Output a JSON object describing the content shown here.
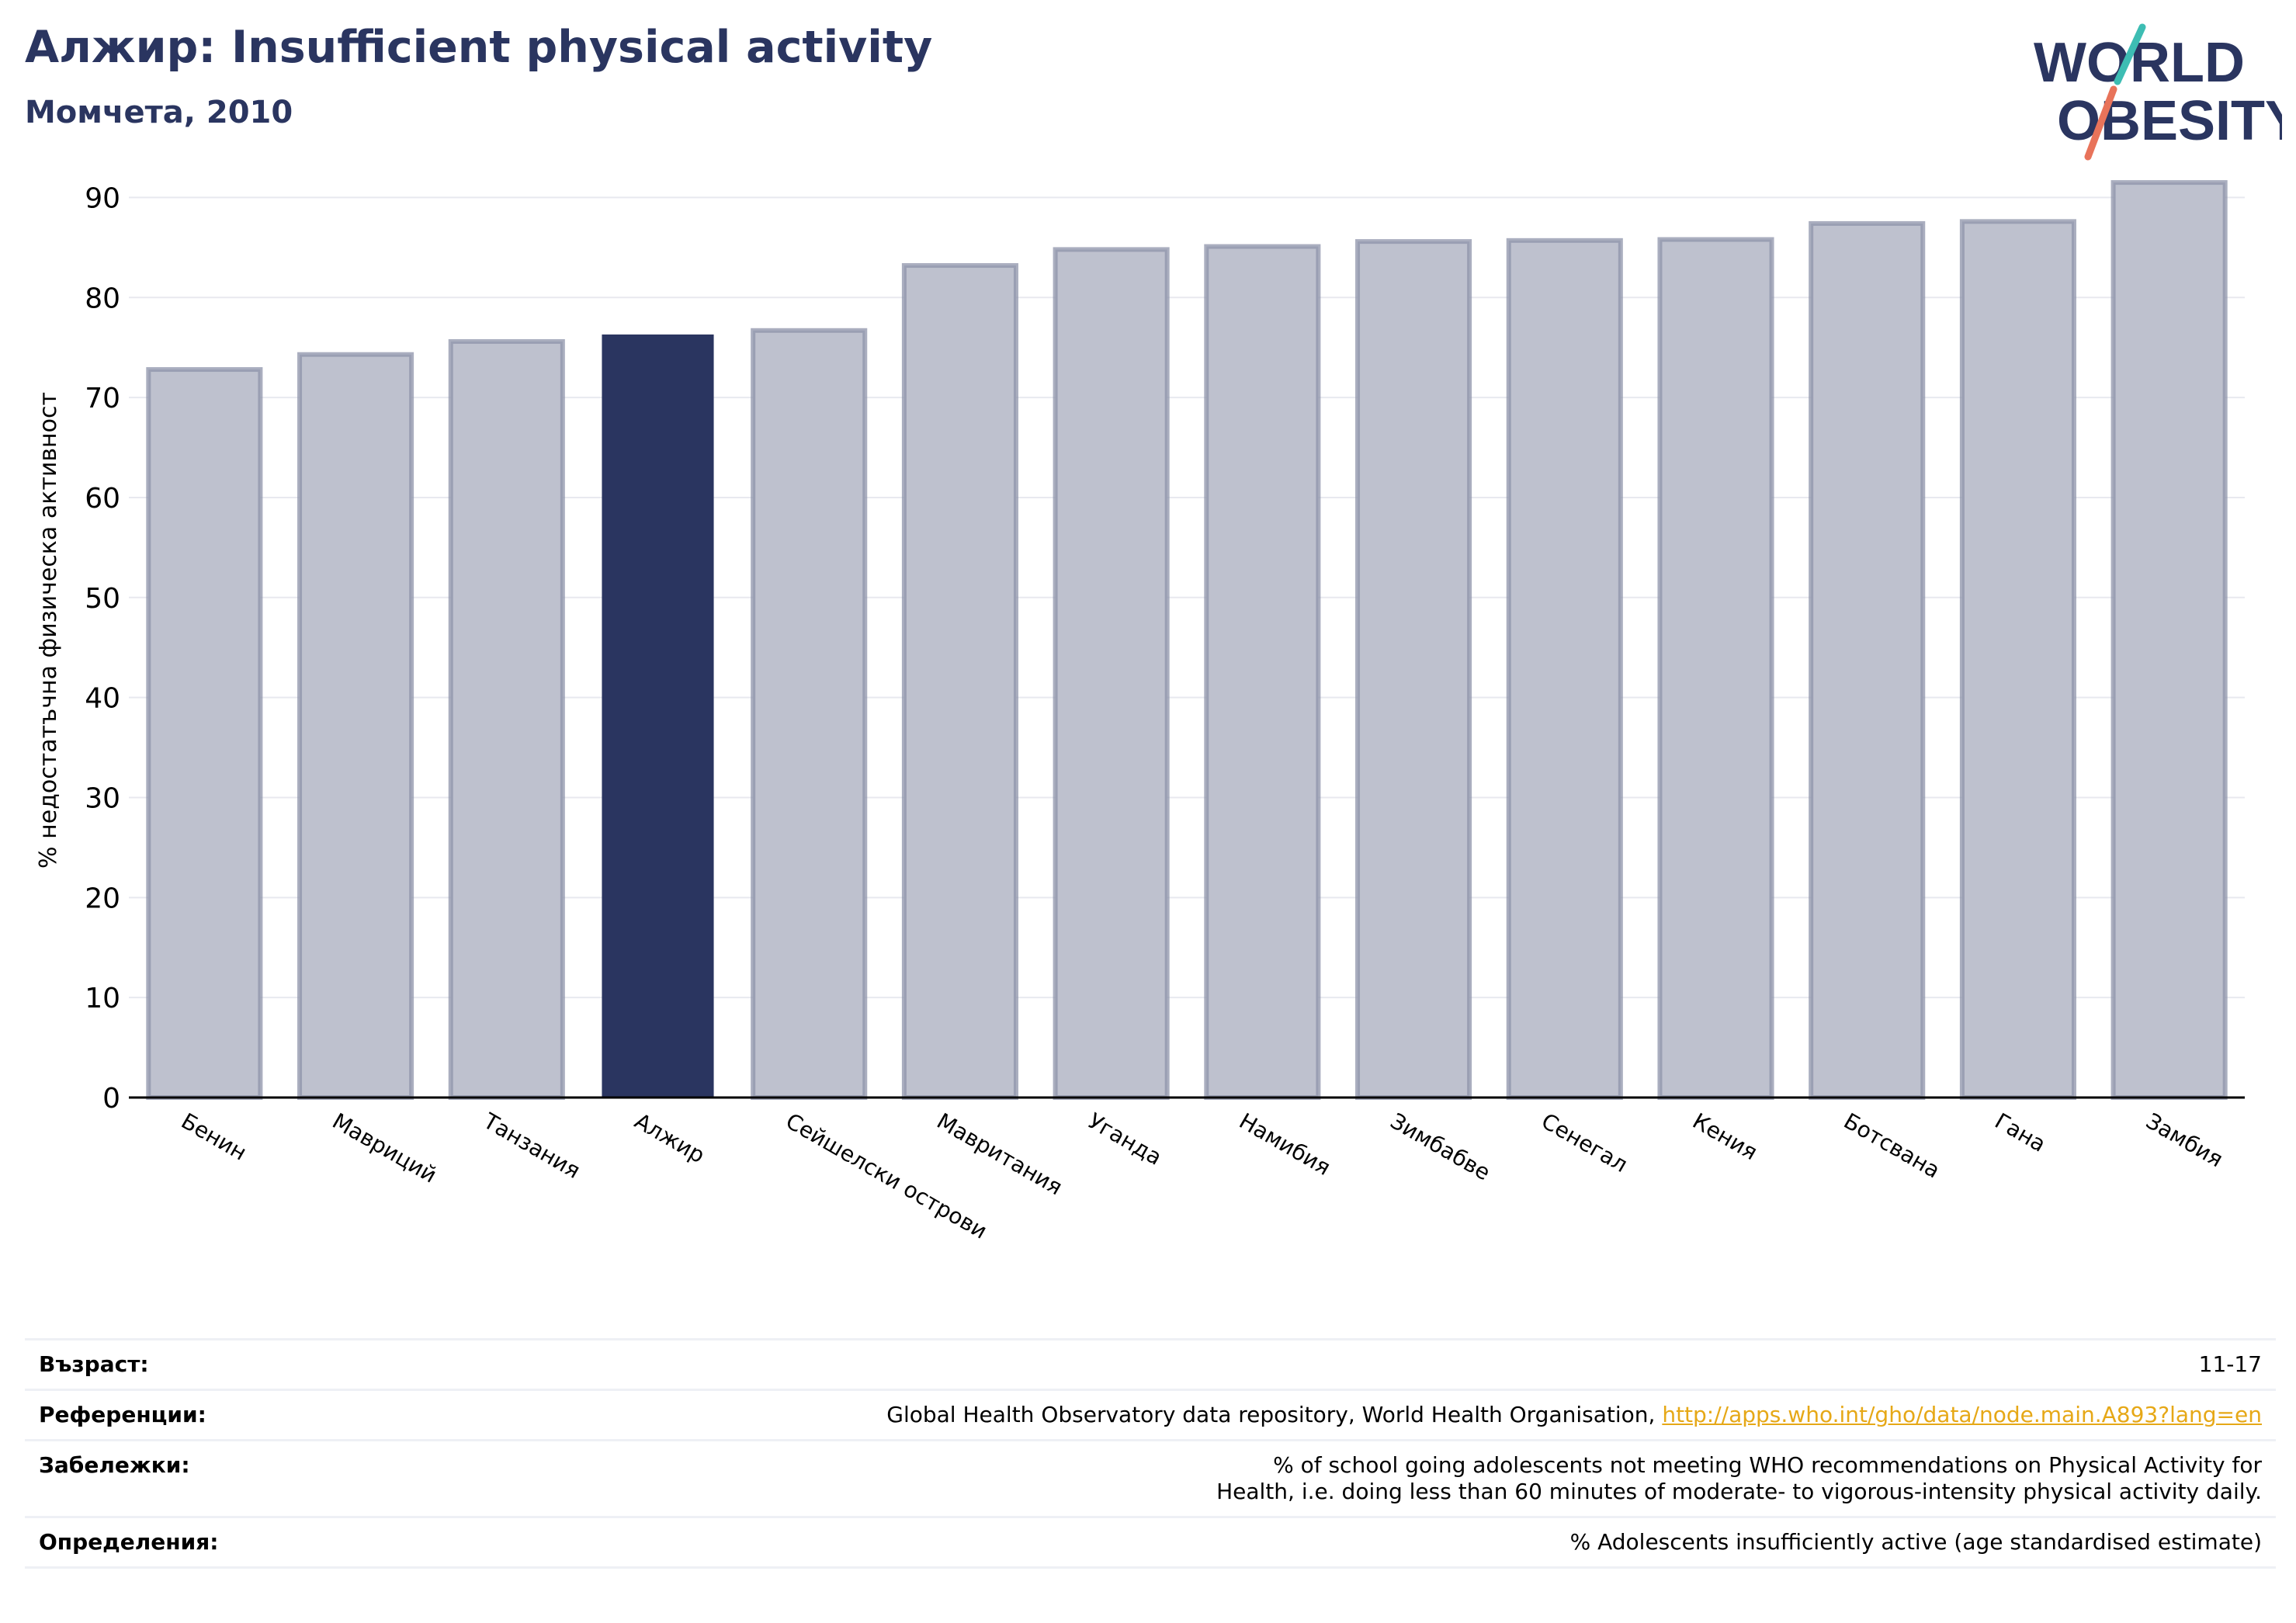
{
  "header": {
    "title": "Алжир: Insufficient physical activity",
    "subtitle": "Момчета, 2010"
  },
  "logo": {
    "line1": "WORLD",
    "line2": "OBESITY",
    "colors": {
      "text": "#2a3560",
      "slash_teal": "#3dbdb3",
      "slash_coral": "#e8735a"
    }
  },
  "colors": {
    "highlight": "#2a3560",
    "bar_fill": "#bec1ce",
    "bar_stroke": "#8e93aa",
    "grid": "#e8e9ef",
    "axis": "#000000",
    "link": "#e6a817"
  },
  "chart_data": {
    "type": "bar",
    "ylabel": "% недостатъчна физическа активност",
    "ylim": [
      0,
      95
    ],
    "yticks": [
      0,
      10,
      20,
      30,
      40,
      50,
      60,
      70,
      80,
      90
    ],
    "grid": true,
    "highlight": "Алжир",
    "categories": [
      "Бенин",
      "Мавриций",
      "Танзания",
      "Алжир",
      "Сейшелски острови",
      "Мавритания",
      "Уганда",
      "Намибия",
      "Зимбабве",
      "Сенегал",
      "Кения",
      "Ботсвана",
      "Гана",
      "Замбия"
    ],
    "values": [
      72.8,
      74.3,
      75.6,
      76.3,
      76.7,
      83.2,
      84.8,
      85.1,
      85.6,
      85.7,
      85.8,
      87.4,
      87.6,
      91.5
    ]
  },
  "info": [
    {
      "key": "Възраст:",
      "value": "11-17"
    },
    {
      "key": "Референции:",
      "value": "Global Health Observatory data repository, World Health Organisation, ",
      "link": "http://apps.who.int/gho/data/node.main.A893?lang=en"
    },
    {
      "key": "Забележки:",
      "value": "% of school going adolescents not meeting WHO recommendations on Physical Activity for Health, i.e. doing less than 60 minutes of moderate- to vigorous-intensity physical activity daily."
    },
    {
      "key": "Определения:",
      "value": "% Adolescents insufficiently active (age standardised estimate)"
    }
  ]
}
